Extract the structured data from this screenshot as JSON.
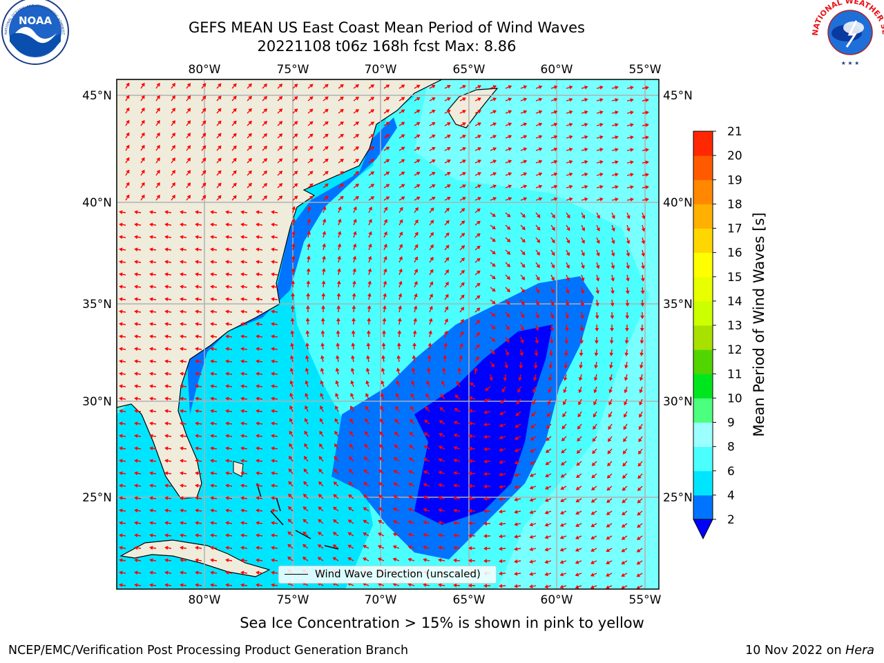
{
  "title": {
    "line1": "GEFS MEAN US East Coast Mean Period of Wind Waves",
    "line2": "20221108 t06z 168h fcst   Max: 8.86"
  },
  "logos": {
    "left": "NOAA",
    "left_ring": "NATIONAL OCEANIC AND ATMOSPHERIC ADMINISTRATION · U.S. DEPARTMENT OF COMMERCE",
    "right_ring": "NATIONAL WEATHER SERVICE"
  },
  "map": {
    "lon_ticks": [
      "80°W",
      "75°W",
      "70°W",
      "65°W",
      "60°W",
      "55°W"
    ],
    "lat_ticks": [
      "45°N",
      "40°N",
      "35°N",
      "30°N",
      "25°N"
    ],
    "colors": {
      "land": "#efecdc",
      "grid": "#b0b0b0",
      "arrow": "#ff0000",
      "coast": "#000000"
    }
  },
  "legend": {
    "label": "Wind Wave Direction (unscaled)"
  },
  "colorbar": {
    "label": "Mean Period of Wind Waves [s]",
    "ticks": [
      "2",
      "4",
      "6",
      "8",
      "9",
      "10",
      "11",
      "12",
      "13",
      "14",
      "15",
      "16",
      "17",
      "18",
      "19",
      "20",
      "21"
    ],
    "colors": [
      "#0073ff",
      "#00e5ff",
      "#4cffff",
      "#9cffff",
      "#4cff7e",
      "#00e61e",
      "#52d400",
      "#a8e000",
      "#ccff00",
      "#e8ff00",
      "#ffff00",
      "#ffd700",
      "#ffb000",
      "#ff8800",
      "#ff5a00",
      "#ff2800"
    ],
    "under_color": "#0000ff"
  },
  "footnote": "Sea Ice Concentration > 15% is shown in pink to yellow",
  "credits": {
    "left": "NCEP/EMC/Verification Post Processing Product Generation Branch",
    "right_date": "10 Nov 2022 on",
    "right_host": "Hera"
  }
}
